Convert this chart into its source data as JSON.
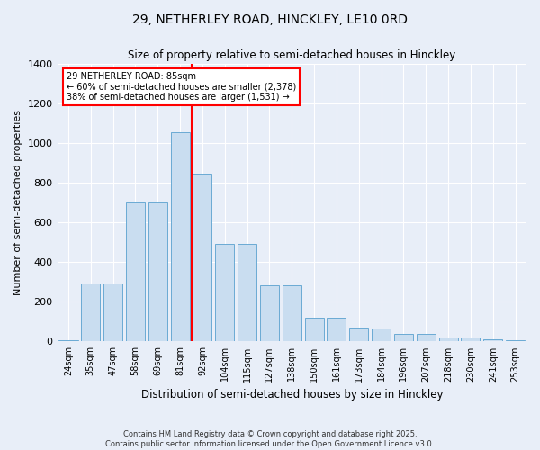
{
  "title_line1": "29, NETHERLEY ROAD, HINCKLEY, LE10 0RD",
  "title_line2": "Size of property relative to semi-detached houses in Hinckley",
  "xlabel": "Distribution of semi-detached houses by size in Hinckley",
  "ylabel": "Number of semi-detached properties",
  "bar_color": "#c9ddf0",
  "bar_edge_color": "#6aaad4",
  "categories": [
    "24sqm",
    "35sqm",
    "47sqm",
    "58sqm",
    "69sqm",
    "81sqm",
    "92sqm",
    "104sqm",
    "115sqm",
    "127sqm",
    "138sqm",
    "150sqm",
    "161sqm",
    "173sqm",
    "184sqm",
    "196sqm",
    "207sqm",
    "218sqm",
    "230sqm",
    "241sqm",
    "253sqm"
  ],
  "bar_heights": [
    8,
    292,
    292,
    700,
    700,
    1055,
    845,
    493,
    490,
    285,
    285,
    122,
    120,
    68,
    65,
    37,
    36,
    22,
    20,
    9,
    5
  ],
  "property_label": "29 NETHERLEY ROAD: 85sqm",
  "annotation_line1": "← 60% of semi-detached houses are smaller (2,378)",
  "annotation_line2": "38% of semi-detached houses are larger (1,531) →",
  "vline_x_bin_index": 5,
  "ylim": [
    0,
    1400
  ],
  "yticks": [
    0,
    200,
    400,
    600,
    800,
    1000,
    1200,
    1400
  ],
  "background_color": "#e8eef8",
  "grid_color": "#ffffff",
  "footer_line1": "Contains HM Land Registry data © Crown copyright and database right 2025.",
  "footer_line2": "Contains public sector information licensed under the Open Government Licence v3.0."
}
